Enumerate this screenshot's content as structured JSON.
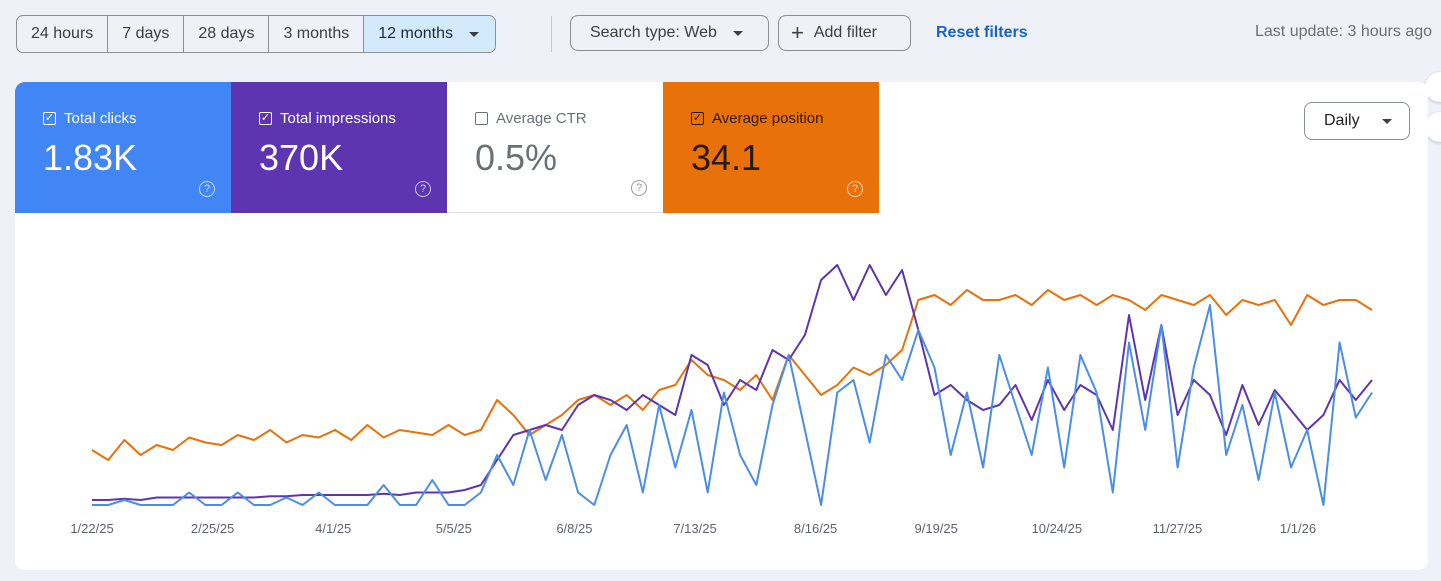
{
  "date_range": {
    "options": [
      "24 hours",
      "7 days",
      "28 days",
      "3 months",
      "12 months"
    ],
    "selected": "12 months"
  },
  "search_type_label": "Search type: Web",
  "add_filter_label": "Add filter",
  "reset_filters_label": "Reset filters",
  "last_update": "Last update: 3 hours ago",
  "granularity": "Daily",
  "metrics": [
    {
      "label": "Total clicks",
      "value": "1.83K",
      "checked": true,
      "color": "#4285f4"
    },
    {
      "label": "Total impressions",
      "value": "370K",
      "checked": true,
      "color": "#5e35b1"
    },
    {
      "label": "Average CTR",
      "value": "0.5%",
      "checked": false,
      "color": "#ffffff"
    },
    {
      "label": "Average position",
      "value": "34.1",
      "checked": true,
      "color": "#e8710a"
    }
  ],
  "chart_data": {
    "type": "line",
    "x_tick_labels": [
      "1/22/25",
      "2/25/25",
      "4/1/25",
      "5/5/25",
      "6/8/25",
      "7/13/25",
      "8/16/25",
      "9/19/25",
      "10/24/25",
      "11/27/25",
      "1/1/26"
    ],
    "y_scale": "relative 0-100 (no axis shown)",
    "ylim": [
      0,
      100
    ],
    "series": [
      {
        "name": "Average position",
        "color": "#e8710a",
        "values": [
          22,
          18,
          26,
          20,
          24,
          22,
          27,
          25,
          24,
          28,
          26,
          30,
          25,
          28,
          27,
          30,
          26,
          32,
          27,
          30,
          29,
          28,
          32,
          28,
          30,
          42,
          36,
          28,
          32,
          36,
          42,
          44,
          40,
          44,
          38,
          46,
          48,
          58,
          52,
          50,
          46,
          52,
          42,
          60,
          52,
          44,
          48,
          55,
          52,
          56,
          62,
          82,
          84,
          80,
          86,
          82,
          82,
          84,
          80,
          86,
          82,
          84,
          80,
          84,
          82,
          78,
          84,
          82,
          80,
          84,
          76,
          82,
          80,
          82,
          72,
          84,
          80,
          82,
          82,
          78
        ]
      },
      {
        "name": "Total impressions",
        "color": "#5e35b1",
        "values": [
          2,
          2,
          2.5,
          2,
          3,
          3,
          3,
          3,
          3,
          3,
          3,
          3.5,
          3.5,
          4,
          4,
          4,
          4,
          4,
          4.5,
          4,
          5,
          5,
          5,
          6,
          8,
          18,
          28,
          30,
          32,
          30,
          40,
          44,
          42,
          38,
          44,
          40,
          36,
          60,
          56,
          40,
          50,
          46,
          62,
          58,
          68,
          90,
          96,
          82,
          96,
          84,
          94,
          70,
          44,
          48,
          42,
          38,
          40,
          48,
          34,
          50,
          38,
          48,
          44,
          30,
          76,
          42,
          72,
          36,
          50,
          44,
          28,
          48,
          32,
          46,
          38,
          30,
          36,
          50,
          42,
          50
        ]
      },
      {
        "name": "Total clicks",
        "color": "#4a8ee6",
        "values": [
          0,
          0,
          2,
          0,
          0,
          0,
          5,
          0,
          0,
          5,
          0,
          0,
          3,
          0,
          5,
          0,
          0,
          0,
          8,
          0,
          0,
          10,
          0,
          0,
          5,
          20,
          8,
          30,
          10,
          28,
          5,
          0,
          20,
          32,
          5,
          40,
          15,
          38,
          5,
          45,
          20,
          8,
          40,
          60,
          30,
          0,
          45,
          50,
          25,
          60,
          50,
          70,
          55,
          20,
          45,
          15,
          60,
          40,
          20,
          55,
          15,
          60,
          45,
          5,
          65,
          30,
          72,
          15,
          55,
          80,
          20,
          40,
          10,
          45,
          15,
          30,
          0,
          65,
          35,
          45
        ]
      }
    ]
  }
}
